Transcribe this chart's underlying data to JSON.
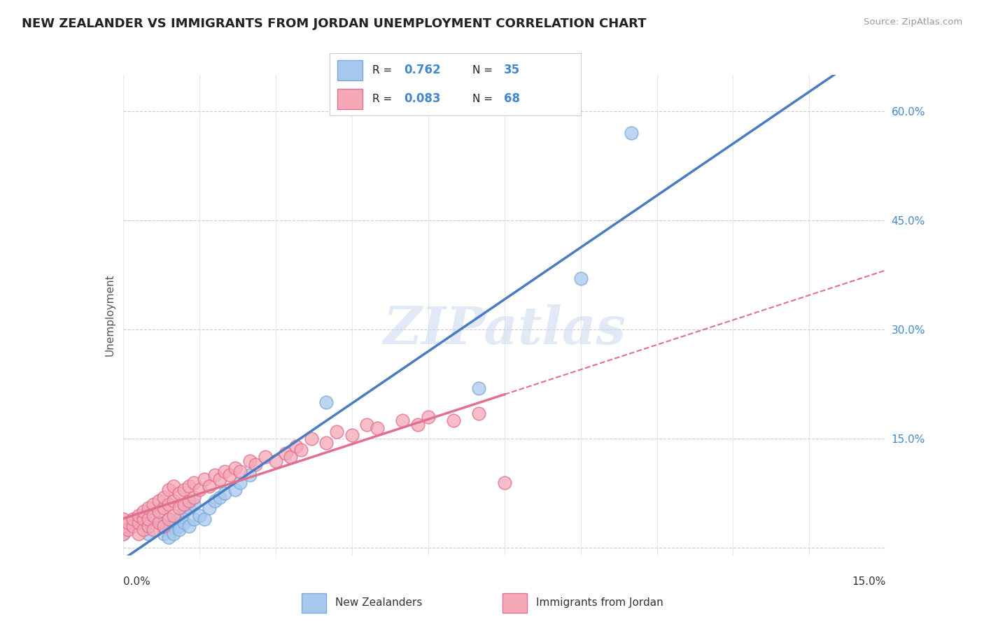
{
  "title": "NEW ZEALANDER VS IMMIGRANTS FROM JORDAN UNEMPLOYMENT CORRELATION CHART",
  "source": "Source: ZipAtlas.com",
  "ylabel": "Unemployment",
  "xmin": 0.0,
  "xmax": 0.15,
  "ymin": -0.01,
  "ymax": 0.65,
  "yticks_right": [
    0.0,
    0.15,
    0.3,
    0.45,
    0.6
  ],
  "ytick_labels_right": [
    "",
    "15.0%",
    "30.0%",
    "45.0%",
    "60.0%"
  ],
  "grid_color": "#cccccc",
  "background_color": "#ffffff",
  "nz_color": "#a8c8f0",
  "nz_edge_color": "#7aaad0",
  "jordan_color": "#f5a8b8",
  "jordan_edge_color": "#e07090",
  "nz_R": 0.762,
  "nz_N": 35,
  "jordan_R": 0.083,
  "jordan_N": 68,
  "nz_line_color": "#4a7cc0",
  "jordan_line_color": "#e07090",
  "jordan_dash_color": "#e07090",
  "legend_R_color": "#4488cc",
  "nz_scatter_x": [
    0.0,
    0.005,
    0.005,
    0.006,
    0.007,
    0.008,
    0.008,
    0.009,
    0.009,
    0.009,
    0.01,
    0.01,
    0.01,
    0.011,
    0.011,
    0.011,
    0.012,
    0.012,
    0.013,
    0.013,
    0.014,
    0.014,
    0.015,
    0.016,
    0.017,
    0.018,
    0.019,
    0.02,
    0.022,
    0.023,
    0.025,
    0.04,
    0.07,
    0.09,
    0.1
  ],
  "nz_scatter_y": [
    0.02,
    0.03,
    0.02,
    0.04,
    0.035,
    0.02,
    0.03,
    0.04,
    0.025,
    0.015,
    0.035,
    0.03,
    0.02,
    0.04,
    0.03,
    0.025,
    0.05,
    0.035,
    0.055,
    0.03,
    0.06,
    0.04,
    0.045,
    0.04,
    0.055,
    0.065,
    0.07,
    0.075,
    0.08,
    0.09,
    0.1,
    0.2,
    0.22,
    0.37,
    0.57
  ],
  "jordan_scatter_x": [
    0.0,
    0.0,
    0.0,
    0.001,
    0.001,
    0.002,
    0.002,
    0.003,
    0.003,
    0.003,
    0.004,
    0.004,
    0.004,
    0.005,
    0.005,
    0.005,
    0.006,
    0.006,
    0.006,
    0.007,
    0.007,
    0.007,
    0.008,
    0.008,
    0.008,
    0.009,
    0.009,
    0.009,
    0.01,
    0.01,
    0.01,
    0.011,
    0.011,
    0.012,
    0.012,
    0.013,
    0.013,
    0.014,
    0.014,
    0.015,
    0.016,
    0.017,
    0.018,
    0.019,
    0.02,
    0.021,
    0.022,
    0.023,
    0.025,
    0.026,
    0.028,
    0.03,
    0.032,
    0.033,
    0.034,
    0.035,
    0.037,
    0.04,
    0.042,
    0.045,
    0.048,
    0.05,
    0.055,
    0.058,
    0.06,
    0.065,
    0.07,
    0.075
  ],
  "jordan_scatter_y": [
    0.02,
    0.03,
    0.04,
    0.025,
    0.035,
    0.03,
    0.04,
    0.02,
    0.035,
    0.045,
    0.025,
    0.04,
    0.05,
    0.03,
    0.04,
    0.055,
    0.025,
    0.045,
    0.06,
    0.035,
    0.05,
    0.065,
    0.03,
    0.055,
    0.07,
    0.04,
    0.06,
    0.08,
    0.045,
    0.065,
    0.085,
    0.055,
    0.075,
    0.06,
    0.08,
    0.065,
    0.085,
    0.07,
    0.09,
    0.08,
    0.095,
    0.085,
    0.1,
    0.095,
    0.105,
    0.1,
    0.11,
    0.105,
    0.12,
    0.115,
    0.125,
    0.12,
    0.13,
    0.125,
    0.14,
    0.135,
    0.15,
    0.145,
    0.16,
    0.155,
    0.17,
    0.165,
    0.175,
    0.17,
    0.18,
    0.175,
    0.185,
    0.09
  ]
}
